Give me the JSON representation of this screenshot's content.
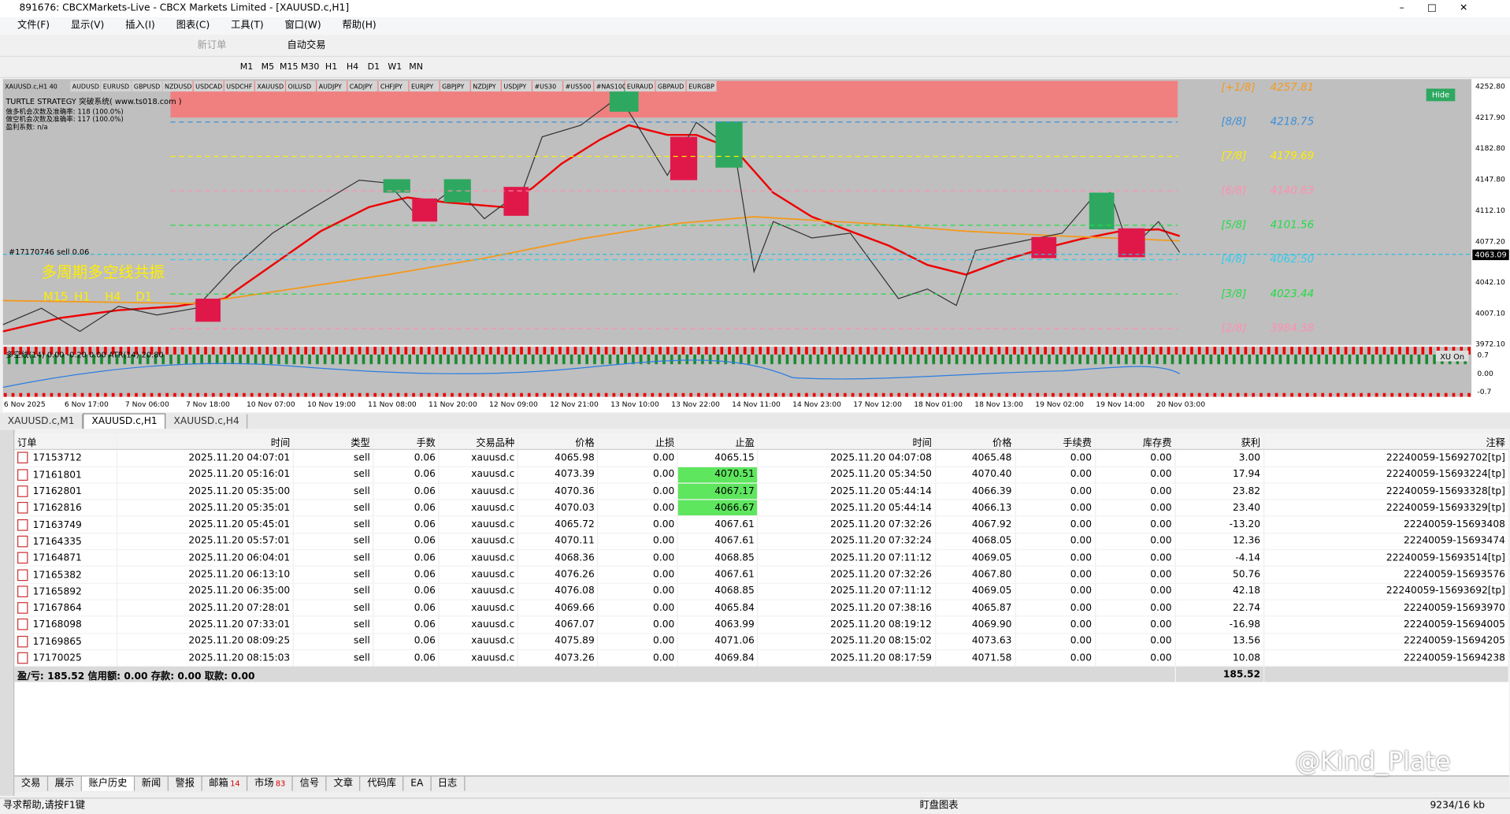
{
  "window": {
    "title": "891676: CBCXMarkets-Live - CBCX Markets Limited - [XAUUSD.c,H1]",
    "menu": [
      "文件(F)",
      "显示(V)",
      "插入(I)",
      "图表(C)",
      "工具(T)",
      "窗口(W)",
      "帮助(H)"
    ]
  },
  "toolbar": {
    "new_order": "新订单",
    "auto_trade": "自动交易",
    "timeframes": [
      "M1",
      "M5",
      "M15",
      "M30",
      "H1",
      "H4",
      "D1",
      "W1",
      "MN"
    ]
  },
  "chart": {
    "symbol_buttons": [
      "XAUUSD.c,H1 40",
      "AUDUSD",
      "EURUSD",
      "GBPUSD",
      "NZDUSD",
      "USDCAD",
      "USDCHF",
      "XAUUSD",
      "OILUSD",
      "AUDJPY",
      "CADJPY",
      "CHFJPY",
      "EURJPY",
      "GBPJPY",
      "NZDJPY",
      "USDJPY",
      "#US30",
      "#US500",
      "#NAS100",
      "EURAUD",
      "GBPAUD",
      "EURGBP"
    ],
    "info": [
      "TURTLE STRATEGY 突破系统( www.ts018.com )",
      "做多机会次数及准确率: 118 (100.0%)",
      "做空机会次数及准确率: 117 (100.0%)",
      "盈利系数: n/a"
    ],
    "resonance_title": "多周期多空线共振",
    "resonance_periods": [
      "M15",
      "H1",
      "H4",
      "D1"
    ],
    "levels": [
      {
        "tag": "[+1/8]",
        "price": "4257.81"
      },
      {
        "tag": "[8/8]",
        "price": "4218.75"
      },
      {
        "tag": "[7/8]",
        "price": "4179.69"
      },
      {
        "tag": "[6/8]",
        "price": "4140.63"
      },
      {
        "tag": "[5/8]",
        "price": "4101.56"
      },
      {
        "tag": "[4/8]",
        "price": "4062.50"
      },
      {
        "tag": "[3/8]",
        "price": "4023.44"
      },
      {
        "tag": "[2/8]",
        "price": "3984.38"
      }
    ],
    "price_axis": [
      "4252.80",
      "4217.90",
      "4182.80",
      "4147.80",
      "4112.10",
      "4077.20",
      "4042.10",
      "4007.10",
      "3972.10"
    ],
    "current_price": "4063.09",
    "order_label": "#17170746 sell 0.06",
    "hide": "Hide",
    "indicator": {
      "label": "多空线(14) 0.00 -0.20 0.00 ATR(14) 20.80",
      "button": "XU On",
      "axis": [
        "0.7",
        "0.00",
        "-0.7"
      ]
    },
    "time_axis": [
      "6 Nov 2025",
      "6 Nov 17:00",
      "7 Nov 06:00",
      "7 Nov 18:00",
      "10 Nov 07:00",
      "10 Nov 19:00",
      "11 Nov 08:00",
      "11 Nov 20:00",
      "12 Nov 09:00",
      "12 Nov 21:00",
      "13 Nov 10:00",
      "13 Nov 22:00",
      "14 Nov 11:00",
      "14 Nov 23:00",
      "17 Nov 12:00",
      "18 Nov 01:00",
      "18 Nov 13:00",
      "19 Nov 02:00",
      "19 Nov 14:00",
      "20 Nov 03:00"
    ]
  },
  "chart_tabs": [
    "XAUUSD.c,M1",
    "XAUUSD.c,H1",
    "XAUUSD.c,H4"
  ],
  "table": {
    "headers": [
      "订单",
      "时间",
      "类型",
      "手数",
      "交易品种",
      "价格",
      "止损",
      "止盈",
      "时间",
      "价格",
      "手续费",
      "库存费",
      "获利",
      "注释"
    ],
    "rows": [
      [
        "17153712",
        "2025.11.20 04:07:01",
        "sell",
        "0.06",
        "xauusd.c",
        "4065.98",
        "0.00",
        "4065.15",
        "2025.11.20 04:07:08",
        "4065.48",
        "0.00",
        "0.00",
        "3.00",
        "22240059-15692702[tp]"
      ],
      [
        "17161801",
        "2025.11.20 05:16:01",
        "sell",
        "0.06",
        "xauusd.c",
        "4073.39",
        "0.00",
        "4070.51",
        "2025.11.20 05:34:50",
        "4070.40",
        "0.00",
        "0.00",
        "17.94",
        "22240059-15693224[tp]"
      ],
      [
        "17162801",
        "2025.11.20 05:35:00",
        "sell",
        "0.06",
        "xauusd.c",
        "4070.36",
        "0.00",
        "4067.17",
        "2025.11.20 05:44:14",
        "4066.39",
        "0.00",
        "0.00",
        "23.82",
        "22240059-15693328[tp]"
      ],
      [
        "17162816",
        "2025.11.20 05:35:01",
        "sell",
        "0.06",
        "xauusd.c",
        "4070.03",
        "0.00",
        "4066.67",
        "2025.11.20 05:44:14",
        "4066.13",
        "0.00",
        "0.00",
        "23.40",
        "22240059-15693329[tp]"
      ],
      [
        "17163749",
        "2025.11.20 05:45:01",
        "sell",
        "0.06",
        "xauusd.c",
        "4065.72",
        "0.00",
        "4067.61",
        "2025.11.20 07:32:26",
        "4067.92",
        "0.00",
        "0.00",
        "-13.20",
        "22240059-15693408"
      ],
      [
        "17164335",
        "2025.11.20 05:57:01",
        "sell",
        "0.06",
        "xauusd.c",
        "4070.11",
        "0.00",
        "4067.61",
        "2025.11.20 07:32:24",
        "4068.05",
        "0.00",
        "0.00",
        "12.36",
        "22240059-15693474"
      ],
      [
        "17164871",
        "2025.11.20 06:04:01",
        "sell",
        "0.06",
        "xauusd.c",
        "4068.36",
        "0.00",
        "4068.85",
        "2025.11.20 07:11:12",
        "4069.05",
        "0.00",
        "0.00",
        "-4.14",
        "22240059-15693514[tp]"
      ],
      [
        "17165382",
        "2025.11.20 06:13:10",
        "sell",
        "0.06",
        "xauusd.c",
        "4076.26",
        "0.00",
        "4067.61",
        "2025.11.20 07:32:26",
        "4067.80",
        "0.00",
        "0.00",
        "50.76",
        "22240059-15693576"
      ],
      [
        "17165892",
        "2025.11.20 06:35:00",
        "sell",
        "0.06",
        "xauusd.c",
        "4076.08",
        "0.00",
        "4068.85",
        "2025.11.20 07:11:12",
        "4069.05",
        "0.00",
        "0.00",
        "42.18",
        "22240059-15693692[tp]"
      ],
      [
        "17167864",
        "2025.11.20 07:28:01",
        "sell",
        "0.06",
        "xauusd.c",
        "4069.66",
        "0.00",
        "4065.84",
        "2025.11.20 07:38:16",
        "4065.87",
        "0.00",
        "0.00",
        "22.74",
        "22240059-15693970"
      ],
      [
        "17168098",
        "2025.11.20 07:33:01",
        "sell",
        "0.06",
        "xauusd.c",
        "4067.07",
        "0.00",
        "4063.99",
        "2025.11.20 08:19:12",
        "4069.90",
        "0.00",
        "0.00",
        "-16.98",
        "22240059-15694005"
      ],
      [
        "17169865",
        "2025.11.20 08:09:25",
        "sell",
        "0.06",
        "xauusd.c",
        "4075.89",
        "0.00",
        "4071.06",
        "2025.11.20 08:15:02",
        "4073.63",
        "0.00",
        "0.00",
        "13.56",
        "22240059-15694205"
      ],
      [
        "17170025",
        "2025.11.20 08:15:03",
        "sell",
        "0.06",
        "xauusd.c",
        "4073.26",
        "0.00",
        "4069.84",
        "2025.11.20 08:17:59",
        "4071.58",
        "0.00",
        "0.00",
        "10.08",
        "22240059-15694238"
      ]
    ],
    "summary": {
      "text": "盈/亏: 185.52 信用额: 0.00 存款: 0.00 取款: 0.00",
      "profit": "185.52"
    }
  },
  "bottom_tabs": [
    {
      "label": "交易"
    },
    {
      "label": "展示"
    },
    {
      "label": "账户历史"
    },
    {
      "label": "新闻"
    },
    {
      "label": "警报"
    },
    {
      "label": "邮箱",
      "badge": "14"
    },
    {
      "label": "市场",
      "badge": "83"
    },
    {
      "label": "信号"
    },
    {
      "label": "文章"
    },
    {
      "label": "代码库"
    },
    {
      "label": "EA"
    },
    {
      "label": "日志"
    }
  ],
  "status": {
    "help": "寻求帮助,请按F1键",
    "center": "盯盘图表",
    "traffic": "9234/16 kb"
  },
  "watermark": "@Kind_Plate"
}
